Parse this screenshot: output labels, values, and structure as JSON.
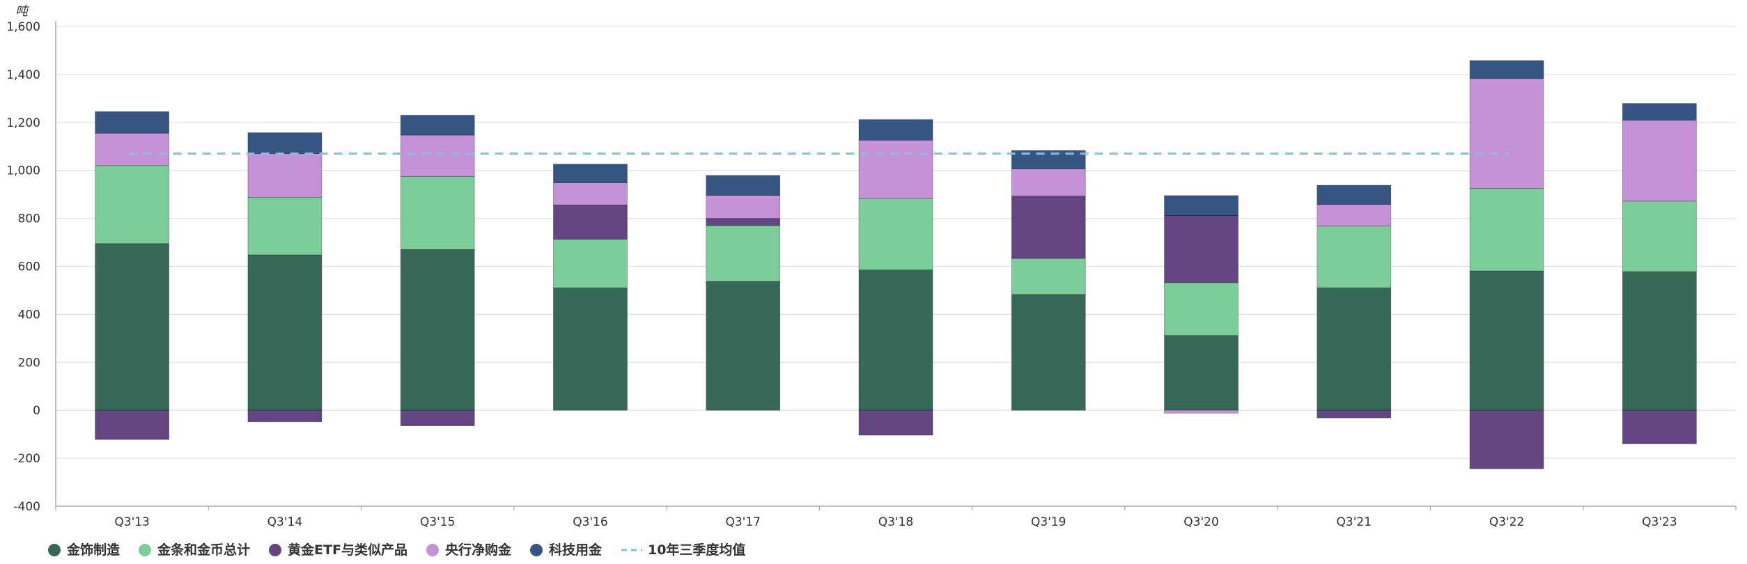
{
  "chart_data": {
    "type": "bar",
    "stacked": true,
    "unit": "吨",
    "categories": [
      "Q3'13",
      "Q3'14",
      "Q3'15",
      "Q3'16",
      "Q3'17",
      "Q3'18",
      "Q3'19",
      "Q3'20",
      "Q3'21",
      "Q3'22",
      "Q3'23"
    ],
    "ylim": [
      -400,
      1600
    ],
    "yticks": [
      -400,
      -200,
      0,
      200,
      400,
      600,
      800,
      1000,
      1200,
      1400,
      1600
    ],
    "ytick_labels": [
      "-400",
      "-200",
      "0",
      "200",
      "400",
      "600",
      "800",
      "1,000",
      "1,200",
      "1,400",
      "1,600"
    ],
    "grid": true,
    "legend_position": "bottom",
    "series": [
      {
        "name": "金饰制造",
        "color": "#386858",
        "values": [
          695,
          648,
          670,
          510,
          537,
          585,
          483,
          312,
          510,
          581,
          578
        ]
      },
      {
        "name": "金条和金币总计",
        "color": "#7dcd9a",
        "values": [
          325,
          240,
          305,
          203,
          233,
          298,
          150,
          220,
          258,
          344,
          294
        ]
      },
      {
        "name": "黄金ETF与类似产品",
        "color": "#634581",
        "values": [
          -122,
          -48,
          -65,
          143,
          30,
          -104,
          260,
          280,
          -32,
          -244,
          -140
        ]
      },
      {
        "name": "央行净购金",
        "color": "#c592d7",
        "values": [
          135,
          182,
          172,
          92,
          96,
          243,
          113,
          0,
          90,
          458,
          337
        ]
      },
      {
        "name": "科技用金",
        "color": "#365582",
        "values": [
          90,
          87,
          83,
          78,
          83,
          86,
          77,
          83,
          80,
          75,
          70
        ]
      }
    ],
    "negative_overrides": [
      {
        "series": "央行净购金",
        "category": "Q3'20",
        "value": -12
      }
    ],
    "reference_line": {
      "name": "10年三季度均值",
      "value": 1070,
      "color": "#7cc4e4",
      "style": "dashed"
    }
  }
}
